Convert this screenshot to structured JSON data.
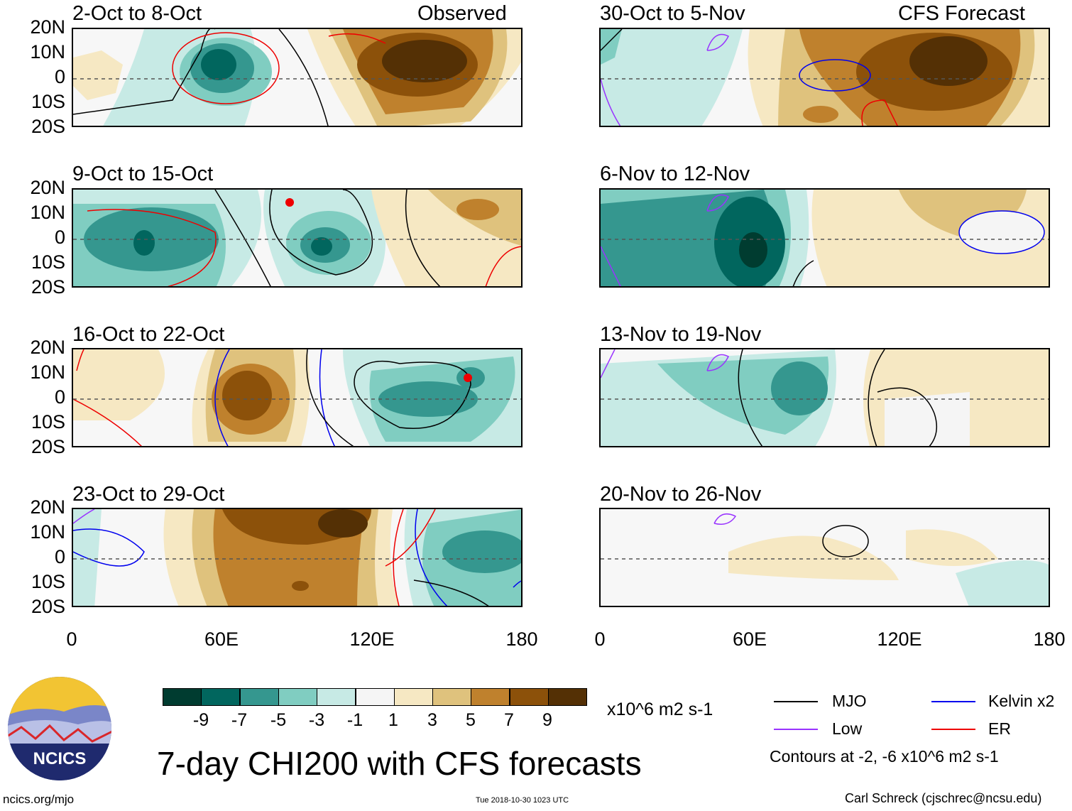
{
  "lat_labels": [
    "20N",
    "10N",
    "0",
    "10S",
    "20S"
  ],
  "lon_labels": [
    "0",
    "60E",
    "120E",
    "180"
  ],
  "panels_left": [
    {
      "title": "2-Oct to 8-Oct",
      "tag": "Observed"
    },
    {
      "title": "9-Oct to 15-Oct",
      "tag": ""
    },
    {
      "title": "16-Oct to 22-Oct",
      "tag": ""
    },
    {
      "title": "23-Oct to 29-Oct",
      "tag": ""
    }
  ],
  "panels_right": [
    {
      "title": "30-Oct to 5-Nov",
      "tag": "CFS Forecast"
    },
    {
      "title": "6-Nov to 12-Nov",
      "tag": ""
    },
    {
      "title": "13-Nov to 19-Nov",
      "tag": ""
    },
    {
      "title": "20-Nov to 26-Nov",
      "tag": ""
    }
  ],
  "colorbar": {
    "colors": [
      "#003c30",
      "#01665e",
      "#35978f",
      "#80cdc1",
      "#c7eae5",
      "#f5f5f5",
      "#f6e8c3",
      "#dfc27d",
      "#bf812d",
      "#8c510a",
      "#543005"
    ],
    "labels": [
      "-9",
      "-7",
      "-5",
      "-3",
      "-1",
      "1",
      "3",
      "5",
      "7",
      "9"
    ],
    "units": "x10^6 m2 s-1"
  },
  "legend": {
    "items": [
      {
        "label": "MJO",
        "color": "#000000"
      },
      {
        "label": "Kelvin x2",
        "color": "#0000ee"
      },
      {
        "label": "Low",
        "color": "#9933ff"
      },
      {
        "label": "ER",
        "color": "#ee0000"
      }
    ],
    "contours_note": "Contours at -2, -6 x10^6 m2 s-1"
  },
  "logo": {
    "text": "NCICS"
  },
  "main_title": "7-day CHI200 with CFS forecasts",
  "footer": {
    "url": "ncics.org/mjo",
    "timestamp": "Tue 2018-10-30 1023 UTC",
    "credit": "Carl Schreck (cjschrec@ncsu.edu)"
  }
}
